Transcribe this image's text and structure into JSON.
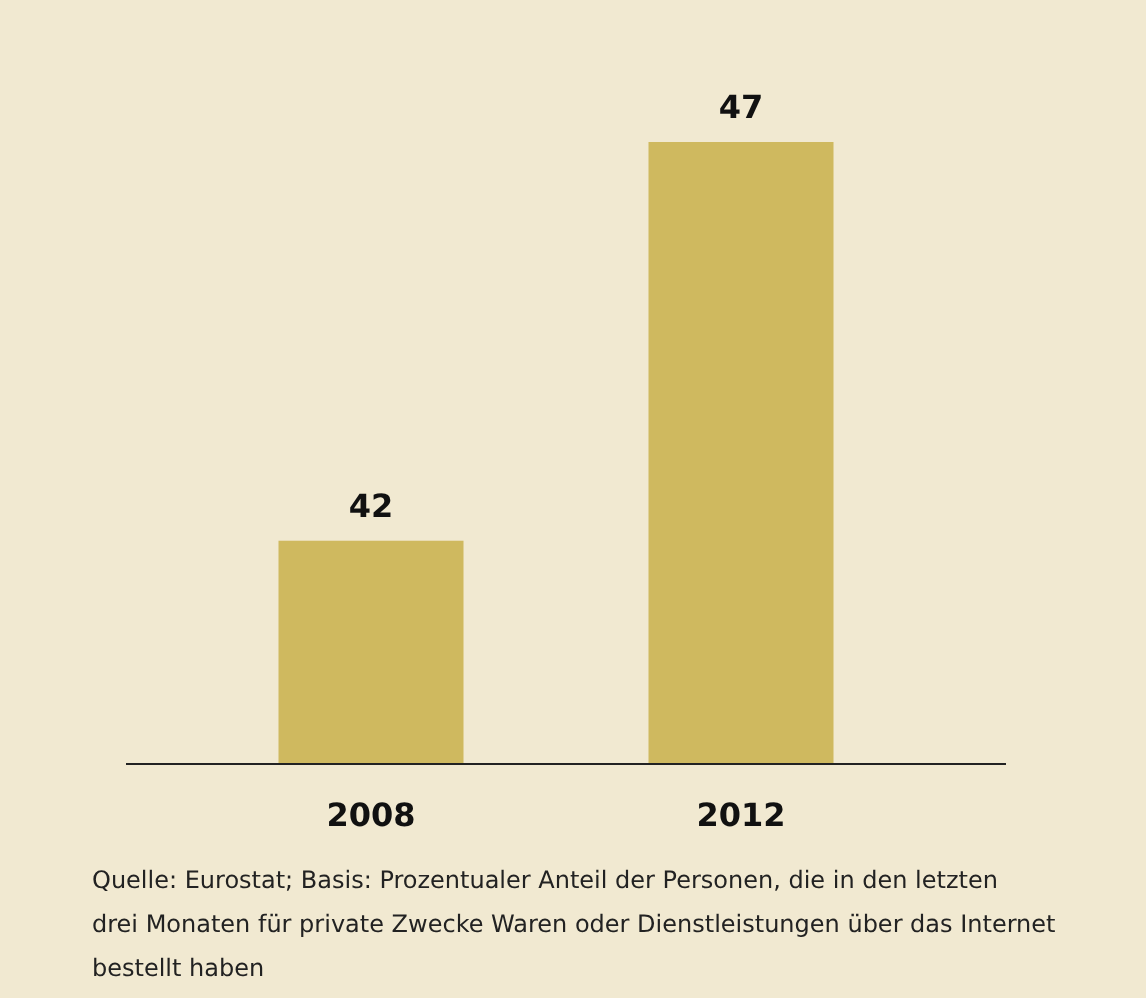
{
  "chart_data": {
    "type": "bar",
    "categories": [
      "2008",
      "2012"
    ],
    "values": [
      42,
      47
    ],
    "color": "#cfb95f",
    "ylim": [
      39.2,
      47
    ],
    "data_labels": true,
    "annotations": [
      "Quelle: Eurostat; Basis: Prozentualer Anteil der Personen, die in den letzten drei Monaten für private Zwecke Waren oder Dienstleistungen über das Internet bestellt haben"
    ]
  }
}
